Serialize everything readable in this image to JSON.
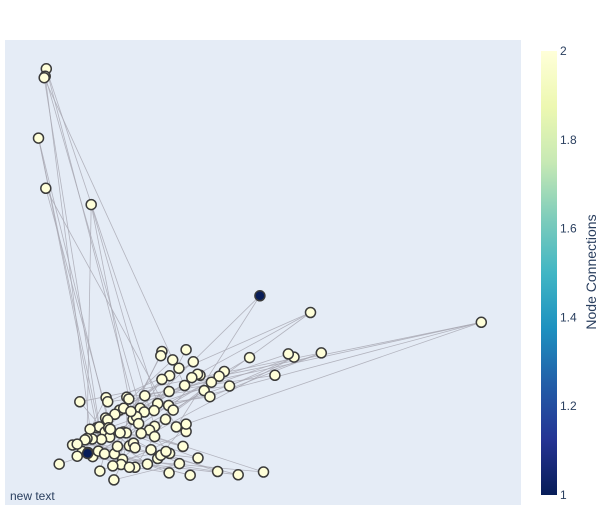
{
  "chart_data": {
    "type": "scatter",
    "annotation": "new text",
    "showgrid": false,
    "show_tick_labels": false,
    "colorbar": {
      "title": "Node Connections",
      "colorscale": "YlGnBu",
      "min": 1,
      "max": 2,
      "ticks": [
        "2",
        "1.8",
        "1.6",
        "1.4",
        "1.2",
        "1"
      ],
      "colors": [
        "#081d58",
        "#253494",
        "#225ea8",
        "#1d91c0",
        "#41b6c4",
        "#7fcdbb",
        "#c7e9b4",
        "#edf8b1",
        "#ffffd9"
      ]
    },
    "nodes": {
      "x": [
        0.08,
        0.078,
        0.076,
        0.065,
        0.079,
        0.167,
        0.494,
        0.923,
        0.592,
        0.56,
        0.613,
        0.304,
        0.302,
        0.351,
        0.365,
        0.474,
        0.549,
        0.425,
        0.378,
        0.523,
        0.415,
        0.337,
        0.325,
        0.373,
        0.362,
        0.4,
        0.435,
        0.319,
        0.304,
        0.386,
        0.348,
        0.397,
        0.318,
        0.271,
        0.236,
        0.196,
        0.145,
        0.199,
        0.24,
        0.317,
        0.296,
        0.326,
        0.222,
        0.23,
        0.262,
        0.213,
        0.27,
        0.289,
        0.248,
        0.255,
        0.244,
        0.195,
        0.199,
        0.178,
        0.183,
        0.165,
        0.194,
        0.201,
        0.229,
        0.259,
        0.29,
        0.311,
        0.332,
        0.351,
        0.351,
        0.28,
        0.264,
        0.235,
        0.223,
        0.203,
        0.187,
        0.169,
        0.159,
        0.155,
        0.131,
        0.15,
        0.14,
        0.17,
        0.181,
        0.161,
        0.193,
        0.212,
        0.228,
        0.241,
        0.218,
        0.225,
        0.209,
        0.252,
        0.249,
        0.283,
        0.296,
        0.319,
        0.345,
        0.374,
        0.338,
        0.276,
        0.302,
        0.252,
        0.29,
        0.318,
        0.359,
        0.412,
        0.452,
        0.501,
        0.105,
        0.16,
        0.184,
        0.241,
        0.312,
        0.204,
        0.14,
        0.211
      ],
      "y": [
        0.938,
        0.922,
        0.919,
        0.789,
        0.681,
        0.646,
        0.45,
        0.393,
        0.414,
        0.318,
        0.327,
        0.33,
        0.321,
        0.334,
        0.308,
        0.317,
        0.325,
        0.287,
        0.279,
        0.279,
        0.277,
        0.294,
        0.312,
        0.281,
        0.274,
        0.264,
        0.256,
        0.278,
        0.27,
        0.246,
        0.257,
        0.233,
        0.244,
        0.235,
        0.232,
        0.231,
        0.222,
        0.222,
        0.228,
        0.214,
        0.218,
        0.204,
        0.204,
        0.208,
        0.208,
        0.195,
        0.2,
        0.203,
        0.184,
        0.19,
        0.201,
        0.187,
        0.183,
        0.166,
        0.168,
        0.163,
        0.157,
        0.166,
        0.157,
        0.175,
        0.169,
        0.184,
        0.168,
        0.158,
        0.174,
        0.161,
        0.154,
        0.155,
        0.155,
        0.146,
        0.141,
        0.142,
        0.143,
        0.14,
        0.129,
        0.115,
        0.105,
        0.104,
        0.116,
        0.113,
        0.11,
        0.11,
        0.098,
        0.127,
        0.126,
        0.087,
        0.084,
        0.081,
        0.133,
        0.119,
        0.1,
        0.111,
        0.126,
        0.101,
        0.089,
        0.088,
        0.107,
        0.123,
        0.147,
        0.069,
        0.064,
        0.072,
        0.065,
        0.071,
        0.088,
        0.111,
        0.073,
        0.081,
        0.115,
        0.163,
        0.131,
        0.054
      ],
      "connections": [
        2,
        2,
        2,
        2,
        2,
        2,
        1,
        2,
        2,
        2,
        2,
        2,
        2,
        2,
        2,
        2,
        2,
        2,
        2,
        2,
        2,
        2,
        2,
        2,
        2,
        2,
        2,
        2,
        2,
        2,
        2,
        2,
        2,
        2,
        2,
        2,
        2,
        2,
        2,
        2,
        2,
        2,
        2,
        2,
        2,
        2,
        2,
        2,
        2,
        2,
        2,
        2,
        2,
        2,
        2,
        2,
        2,
        2,
        2,
        2,
        2,
        2,
        2,
        2,
        2,
        2,
        2,
        2,
        2,
        2,
        2,
        2,
        2,
        2,
        2,
        2,
        2,
        2,
        2,
        2,
        2,
        2,
        2,
        2,
        2,
        2,
        2,
        2,
        2,
        2,
        2,
        2,
        2,
        2,
        2,
        2,
        2,
        2,
        2,
        2,
        2,
        2,
        2,
        2,
        2,
        1,
        2,
        2,
        2,
        2,
        2,
        2
      ]
    },
    "edges": [
      [
        0,
        40
      ],
      [
        0,
        66
      ],
      [
        1,
        44
      ],
      [
        1,
        55
      ],
      [
        2,
        30
      ],
      [
        2,
        70
      ],
      [
        3,
        52
      ],
      [
        3,
        80
      ],
      [
        4,
        62
      ],
      [
        4,
        85
      ],
      [
        5,
        60
      ],
      [
        5,
        72
      ],
      [
        6,
        62
      ],
      [
        7,
        33
      ],
      [
        7,
        39
      ],
      [
        7,
        64
      ],
      [
        8,
        37
      ],
      [
        8,
        60
      ],
      [
        9,
        40
      ],
      [
        9,
        88
      ],
      [
        10,
        36
      ],
      [
        10,
        57
      ],
      [
        11,
        58
      ],
      [
        12,
        50
      ],
      [
        13,
        47
      ],
      [
        14,
        45
      ],
      [
        15,
        39
      ],
      [
        16,
        42
      ],
      [
        17,
        55
      ],
      [
        18,
        60
      ],
      [
        19,
        34
      ],
      [
        20,
        47
      ],
      [
        21,
        54
      ],
      [
        22,
        52
      ],
      [
        23,
        49
      ],
      [
        24,
        46
      ],
      [
        25,
        65
      ],
      [
        26,
        37
      ],
      [
        27,
        71
      ],
      [
        28,
        49
      ],
      [
        29,
        41
      ],
      [
        30,
        45
      ],
      [
        31,
        42
      ],
      [
        32,
        68
      ],
      [
        33,
        51
      ],
      [
        34,
        67
      ],
      [
        35,
        73
      ],
      [
        36,
        69
      ],
      [
        38,
        75
      ],
      [
        39,
        77
      ],
      [
        41,
        78
      ],
      [
        43,
        76
      ],
      [
        44,
        81
      ],
      [
        46,
        79
      ],
      [
        48,
        82
      ],
      [
        50,
        83
      ],
      [
        53,
        74
      ],
      [
        56,
        84
      ],
      [
        59,
        86
      ],
      [
        61,
        87
      ],
      [
        63,
        89
      ],
      [
        64,
        90
      ],
      [
        65,
        91
      ],
      [
        66,
        92
      ],
      [
        67,
        93
      ],
      [
        68,
        94
      ],
      [
        69,
        95
      ],
      [
        70,
        96
      ],
      [
        71,
        97
      ],
      [
        72,
        98
      ],
      [
        73,
        99
      ],
      [
        74,
        100
      ],
      [
        75,
        101
      ],
      [
        76,
        102
      ],
      [
        77,
        103
      ],
      [
        78,
        104
      ],
      [
        79,
        105
      ],
      [
        80,
        106
      ],
      [
        81,
        107
      ],
      [
        82,
        108
      ],
      [
        83,
        109
      ],
      [
        84,
        110
      ],
      [
        85,
        111
      ],
      [
        86,
        97
      ],
      [
        87,
        99
      ],
      [
        88,
        101
      ],
      [
        89,
        106
      ],
      [
        90,
        107
      ],
      [
        91,
        108
      ],
      [
        92,
        109
      ],
      [
        93,
        110
      ],
      [
        94,
        111
      ],
      [
        95,
        100
      ],
      [
        96,
        102
      ],
      [
        98,
        103
      ],
      [
        6,
        49
      ],
      [
        7,
        20
      ],
      [
        8,
        23
      ],
      [
        9,
        26
      ],
      [
        10,
        31
      ],
      [
        105,
        74
      ],
      [
        105,
        85
      ],
      [
        5,
        48
      ],
      [
        3,
        53
      ]
    ]
  }
}
